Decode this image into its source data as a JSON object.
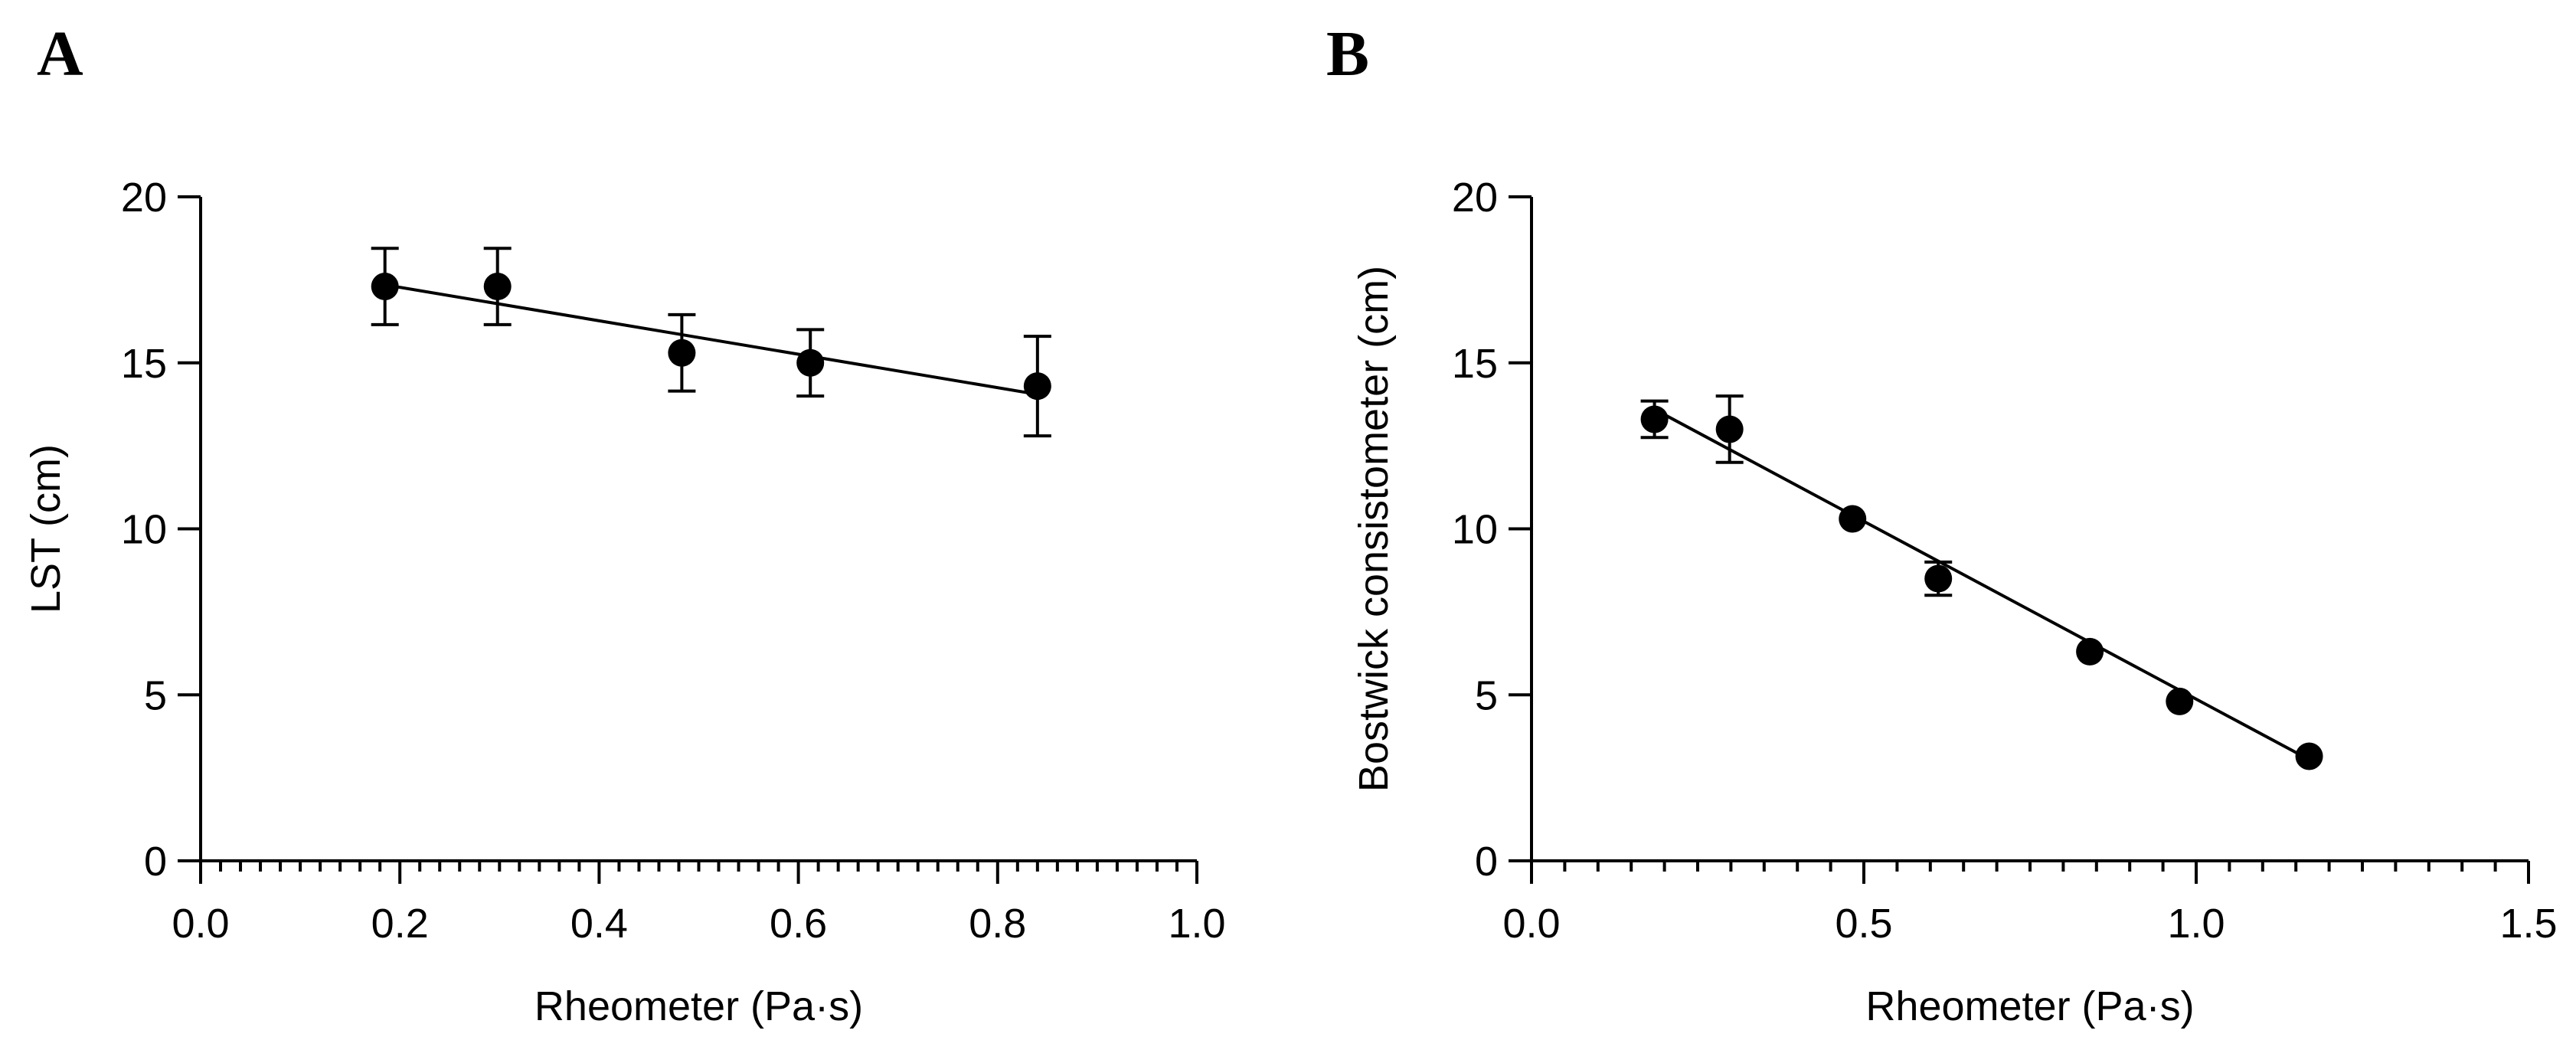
{
  "chart_data": [
    {
      "panel": "A",
      "type": "scatter",
      "xlabel": "Rheometer (Pa·s)",
      "ylabel": "LST (cm)",
      "xlim": [
        0.0,
        1.0
      ],
      "ylim": [
        0,
        20
      ],
      "xticks": [
        "0.0",
        "0.2",
        "0.4",
        "0.6",
        "0.8",
        "1.0"
      ],
      "xtick_values": [
        0.0,
        0.2,
        0.4,
        0.6,
        0.8,
        1.0
      ],
      "yticks": [
        "0",
        "5",
        "10",
        "15",
        "20"
      ],
      "ytick_values": [
        0,
        5,
        10,
        15,
        20
      ],
      "x_minor_step": 0.02,
      "points": [
        {
          "x": 0.185,
          "y": 17.3,
          "err": 1.15
        },
        {
          "x": 0.298,
          "y": 17.3,
          "err": 1.15
        },
        {
          "x": 0.483,
          "y": 15.3,
          "err": 1.15
        },
        {
          "x": 0.612,
          "y": 15.0,
          "err": 1.0
        },
        {
          "x": 0.84,
          "y": 14.3,
          "err": 1.5
        }
      ],
      "fit": {
        "x": [
          0.185,
          0.84
        ],
        "y": [
          17.35,
          14.05
        ]
      }
    },
    {
      "panel": "B",
      "type": "scatter",
      "xlabel": "Rheometer (Pa·s)",
      "ylabel": "Bostwick consistometer (cm)",
      "xlim": [
        0.0,
        1.5
      ],
      "ylim": [
        0,
        20
      ],
      "xticks": [
        "0.0",
        "0.5",
        "1.0",
        "1.5"
      ],
      "xtick_values": [
        0.0,
        0.5,
        1.0,
        1.5
      ],
      "yticks": [
        "0",
        "5",
        "10",
        "15",
        "20"
      ],
      "ytick_values": [
        0,
        5,
        10,
        15,
        20
      ],
      "x_minor_step": 0.05,
      "points": [
        {
          "x": 0.185,
          "y": 13.3,
          "err": 0.55
        },
        {
          "x": 0.298,
          "y": 13.0,
          "err": 1.0
        },
        {
          "x": 0.483,
          "y": 10.3,
          "err": 0
        },
        {
          "x": 0.612,
          "y": 8.5,
          "err": 0.5
        },
        {
          "x": 0.84,
          "y": 6.3,
          "err": 0
        },
        {
          "x": 0.975,
          "y": 4.8,
          "err": 0
        },
        {
          "x": 1.17,
          "y": 3.15,
          "err": 0
        }
      ],
      "fit": {
        "x": [
          0.185,
          1.17
        ],
        "y": [
          13.6,
          3.05
        ]
      }
    }
  ]
}
